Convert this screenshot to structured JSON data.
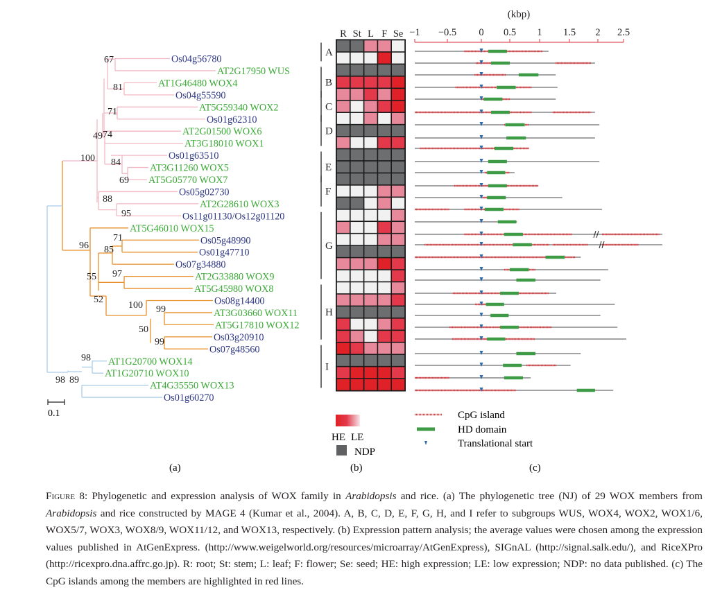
{
  "figure": {
    "panel_labels": [
      "(a)",
      "(b)",
      "(c)"
    ],
    "caption": {
      "label": "Figure 8:",
      "segments": [
        {
          "text": " Phylogenetic and expression analysis of WOX family in ",
          "italic": false
        },
        {
          "text": "Arabidopsis",
          "italic": true
        },
        {
          "text": " and rice. (a) The phylogenetic tree (NJ) of 29 WOX members from ",
          "italic": false
        },
        {
          "text": "Arabidopsis",
          "italic": true
        },
        {
          "text": " and rice constructed by MAGE 4 (Kumar et al., 2004). A, B, C, D, E, F, G, H, and I refer to subgroups WUS, WOX4, WOX2, WOX1/6, WOX5/7, WOX3, WOX8/9, WOX11/12, and WOX13, respectively. (b) Expression pattern analysis; the average values were chosen among the expression values published in AtGenExpress. (http://www.weigelworld.org/resources/microarray/AtGenExpress), SIGnAL (http://signal.salk.edu/), and RiceXPro (http://ricexpro.dna.affrc.go.jp). R: root; St: stem; L: leaf; F: flower; Se: seed; HE: high expression; LE: low expression; NDP: no data published. (c) The CpG islands among the members are highlighted in red lines.",
          "italic": false
        }
      ]
    }
  },
  "colors": {
    "arabidopsis_label": "#3aa935",
    "rice_label": "#2b3582",
    "clade_pink": "#f2b8c3",
    "clade_orange": "#e8902a",
    "clade_blue": "#a9cbe6",
    "ndp": "#6d6e70",
    "high": "#e02127",
    "mid": "#e3394a",
    "low_mid": "#e8899b",
    "low": "#f1f1f1",
    "cpg": "#e53a3f",
    "hd": "#3e9b45",
    "tss": "#2d6aa6",
    "axis": "#e05560",
    "gene_line": "#6d6e70"
  },
  "tree": {
    "scale_label": "0.1",
    "leaves": [
      {
        "name": "Os04g56780",
        "species": "rice"
      },
      {
        "name": "AT2G17950 WUS",
        "species": "arabidopsis"
      },
      {
        "name": "AT1G46480 WOX4",
        "species": "arabidopsis"
      },
      {
        "name": "Os04g55590",
        "species": "rice"
      },
      {
        "name": "AT5G59340 WOX2",
        "species": "arabidopsis"
      },
      {
        "name": "Os01g62310",
        "species": "rice"
      },
      {
        "name": "AT2G01500 WOX6",
        "species": "arabidopsis"
      },
      {
        "name": "AT3G18010 WOX1",
        "species": "arabidopsis"
      },
      {
        "name": "Os01g63510",
        "species": "rice"
      },
      {
        "name": "AT3G11260 WOX5",
        "species": "arabidopsis"
      },
      {
        "name": "AT5G05770 WOX7",
        "species": "arabidopsis"
      },
      {
        "name": "Os05g02730",
        "species": "rice"
      },
      {
        "name": "AT2G28610 WOX3",
        "species": "arabidopsis"
      },
      {
        "name": "Os11g01130/Os12g01120",
        "species": "rice"
      },
      {
        "name": "AT5G46010 WOX15",
        "species": "arabidopsis"
      },
      {
        "name": "Os05g48990",
        "species": "rice"
      },
      {
        "name": "Os01g47710",
        "species": "rice"
      },
      {
        "name": "Os07g34880",
        "species": "rice"
      },
      {
        "name": "AT2G33880 WOX9",
        "species": "arabidopsis"
      },
      {
        "name": "AT5G45980 WOX8",
        "species": "arabidopsis"
      },
      {
        "name": "Os08g14400",
        "species": "rice"
      },
      {
        "name": "AT3G03660 WOX11",
        "species": "arabidopsis"
      },
      {
        "name": "AT5G17810 WOX12",
        "species": "arabidopsis"
      },
      {
        "name": "Os03g20910",
        "species": "rice"
      },
      {
        "name": "Os07g48560",
        "species": "rice"
      },
      {
        "name": "AT1G20700 WOX14",
        "species": "arabidopsis"
      },
      {
        "name": "AT1G20710 WOX10",
        "species": "arabidopsis"
      },
      {
        "name": "AT4G35550 WOX13",
        "species": "arabidopsis"
      },
      {
        "name": "Os01g60270",
        "species": "rice"
      }
    ],
    "bootstrap_values": [
      "67",
      "81",
      "71",
      "49",
      "74",
      "84",
      "69",
      "100",
      "88",
      "95",
      "96",
      "71",
      "85",
      "55",
      "97",
      "52",
      "100",
      "99",
      "50",
      "99",
      "98",
      "98",
      "89"
    ]
  },
  "heatmap": {
    "columns": [
      "R",
      "St",
      "L",
      "F",
      "Se"
    ],
    "groups": [
      {
        "label": "A",
        "rows": [
          0,
          1
        ]
      },
      {
        "label": "B",
        "rows": [
          2,
          4
        ]
      },
      {
        "label": "C",
        "rows": [
          4,
          6
        ]
      },
      {
        "label": "D",
        "rows": [
          6,
          8
        ]
      },
      {
        "label": "E",
        "rows": [
          9,
          11
        ]
      },
      {
        "label": "F",
        "rows": [
          11,
          13
        ]
      },
      {
        "label": "G",
        "rows": [
          14,
          19
        ]
      },
      {
        "label": "H",
        "rows": [
          20,
          24
        ]
      },
      {
        "label": "I",
        "rows": [
          25,
          28
        ]
      }
    ],
    "legend": {
      "high_label": "HE",
      "low_label": "LE",
      "ndp_label": "NDP"
    },
    "levels_note": "NDP = no data; 4 = high, 3 = mid-high, 2 = mid-low, 1 = low",
    "cells": [
      [
        "NDP",
        "NDP",
        2,
        2,
        1
      ],
      [
        1,
        1,
        1,
        4,
        1
      ],
      [
        "NDP",
        "NDP",
        "NDP",
        "NDP",
        "NDP"
      ],
      [
        3,
        3,
        3,
        3,
        4
      ],
      [
        2,
        2,
        3,
        2,
        4
      ],
      [
        2,
        1,
        2,
        3,
        4
      ],
      [
        1,
        1,
        2,
        1,
        2
      ],
      [
        "NDP",
        "NDP",
        "NDP",
        "NDP",
        "NDP"
      ],
      [
        2,
        1,
        1,
        3,
        3
      ],
      [
        "NDP",
        "NDP",
        "NDP",
        "NDP",
        "NDP"
      ],
      [
        "NDP",
        "NDP",
        "NDP",
        "NDP",
        "NDP"
      ],
      [
        "NDP",
        "NDP",
        "NDP",
        "NDP",
        "NDP"
      ],
      [
        1,
        1,
        1,
        2,
        2
      ],
      [
        "NDP",
        "NDP",
        1,
        2,
        1
      ],
      [
        1,
        1,
        1,
        1,
        2
      ],
      [
        2,
        1,
        1,
        3,
        2
      ],
      [
        1,
        1,
        1,
        2,
        2
      ],
      [
        "NDP",
        "NDP",
        "NDP",
        "NDP",
        "NDP"
      ],
      [
        2,
        2,
        2,
        4,
        3
      ],
      [
        1,
        1,
        1,
        1,
        3
      ],
      [
        1,
        1,
        1,
        1,
        2
      ],
      [
        2,
        2,
        2,
        2,
        3
      ],
      [
        "NDP",
        "NDP",
        "NDP",
        "NDP",
        "NDP"
      ],
      [
        3,
        1,
        1,
        2,
        3
      ],
      [
        3,
        2,
        1,
        3,
        3
      ],
      [
        4,
        3,
        2,
        2,
        2
      ],
      [
        "NDP",
        "NDP",
        "NDP",
        "NDP",
        "NDP"
      ],
      [
        3,
        4,
        4,
        4,
        3
      ],
      [
        4,
        4,
        4,
        4,
        4
      ]
    ]
  },
  "chart_data": {
    "type": "gene-structure",
    "title": "",
    "xlabel": "(kbp)",
    "xlim": [
      -1,
      2.5
    ],
    "xticks": [
      "-1",
      "-0.5",
      "0",
      "0.5",
      "1",
      "1.5",
      "2",
      "2.5"
    ],
    "xtick_values": [
      -1,
      -0.5,
      0,
      0.5,
      1,
      1.5,
      2,
      2.5
    ],
    "legend": {
      "cpg_label": "CpG island",
      "hd_label": "HD domain",
      "tss_label": "Translational start",
      "placement": "bottom"
    },
    "genes": [
      {
        "start": -1,
        "end": 1.15,
        "hd": [
          0.12,
          0.45
        ],
        "cpg": [
          [
            -0.25,
            1.05
          ]
        ],
        "tss": 0
      },
      {
        "start": -1,
        "end": 1.95,
        "hd": [
          0.17,
          0.5
        ],
        "cpg": [
          [
            -0.08,
            0.5
          ],
          [
            1.27,
            1.88
          ]
        ],
        "tss": 0
      },
      {
        "start": -1,
        "end": 1.27,
        "hd": [
          0.65,
          0.98
        ],
        "cpg": [
          [
            -0.1,
            0.43
          ]
        ],
        "tss": 0
      },
      {
        "start": -1,
        "end": 1.3,
        "hd": [
          0.27,
          0.6
        ],
        "cpg": [
          [
            -0.38,
            0.87
          ]
        ],
        "tss": 0
      },
      {
        "start": -1,
        "end": 1.27,
        "hd": [
          0.04,
          0.37
        ],
        "cpg": [
          [
            0,
            0.5
          ]
        ],
        "tss": 0
      },
      {
        "start": -1,
        "end": 1.95,
        "hd": [
          0.17,
          0.5
        ],
        "cpg": [
          [
            -1,
            0.87
          ],
          [
            1.22,
            1.88
          ]
        ],
        "tss": 0
      },
      {
        "start": -1,
        "end": 2.03,
        "hd": [
          0.42,
          0.75
        ],
        "cpg": [
          [
            0.4,
            0.82
          ]
        ],
        "tss": 0
      },
      {
        "start": -1,
        "end": 1.95,
        "hd": [
          0.44,
          0.77
        ],
        "cpg": [],
        "tss": 0
      },
      {
        "start": -1,
        "end": 0.82,
        "hd": [
          0.23,
          0.56
        ],
        "cpg": [
          [
            -0.92,
            0.82
          ]
        ],
        "tss": 0
      },
      {
        "start": -1,
        "end": 2.03,
        "hd": [
          0.12,
          0.45
        ],
        "cpg": [],
        "tss": 0
      },
      {
        "start": -1,
        "end": 0.58,
        "hd": [
          0.1,
          0.42
        ],
        "cpg": [
          [
            0.06,
            0.5
          ]
        ],
        "tss": 0
      },
      {
        "start": -1,
        "end": 0.98,
        "hd": [
          0.12,
          0.45
        ],
        "cpg": [
          [
            -0.4,
            0.98
          ]
        ],
        "tss": 0
      },
      {
        "start": -1,
        "end": 1.38,
        "hd": [
          0.1,
          0.43
        ],
        "cpg": [
          [
            0.02,
            0.43
          ]
        ],
        "tss": 0
      },
      {
        "start": -1,
        "end": 2.08,
        "hd": [
          0.06,
          0.39
        ],
        "cpg": [
          [
            -1,
            -0.47
          ],
          [
            -0.25,
            0.66
          ]
        ],
        "tss": 0
      },
      {
        "start": -1,
        "end": 0.62,
        "hd": [
          0.29,
          0.61
        ],
        "cpg": [],
        "tss": 0
      },
      {
        "start": -1,
        "end": 2.6,
        "hd": [
          0.4,
          0.72
        ],
        "cpg": [
          [
            -0.25,
            1.55
          ],
          [
            2.05,
            2.6
          ]
        ],
        "tss": 0,
        "break": 1.95
      },
      {
        "start": -1,
        "end": 2.45,
        "hd": [
          0.55,
          0.87
        ],
        "cpg": [
          [
            -0.85,
            1.17
          ],
          [
            1.22,
            1.83
          ],
          [
            2.05,
            2.4
          ]
        ],
        "tss": 0,
        "break": 1.92
      },
      {
        "start": -1,
        "end": 1.7,
        "hd": [
          1.1,
          1.42
        ],
        "cpg": [
          [
            -1,
            1.6
          ]
        ],
        "tss": 0
      },
      {
        "start": -1,
        "end": 2.2,
        "hd": [
          0.5,
          0.82
        ],
        "cpg": [
          [
            0.4,
            0.93
          ]
        ],
        "tss": 0
      },
      {
        "start": -1,
        "end": 2.05,
        "hd": [
          0.61,
          0.93
        ],
        "cpg": [],
        "tss": 0
      },
      {
        "start": -1,
        "end": 1.28,
        "hd": [
          0.33,
          0.65
        ],
        "cpg": [
          [
            -0.42,
            1.15
          ]
        ],
        "tss": 0
      },
      {
        "start": -1,
        "end": 2.33,
        "hd": [
          0.08,
          0.4
        ],
        "cpg": [
          [
            -0.09,
            0.32
          ]
        ],
        "tss": 0
      },
      {
        "start": -1,
        "end": 2.05,
        "hd": [
          0.16,
          0.48
        ],
        "cpg": [],
        "tss": 0
      },
      {
        "start": -1,
        "end": 2.38,
        "hd": [
          0.33,
          0.65
        ],
        "cpg": [
          [
            -0.47,
            1.2
          ]
        ],
        "tss": 0
      },
      {
        "start": -1,
        "end": 2.55,
        "hd": [
          0.1,
          0.42
        ],
        "cpg": [
          [
            -0.43,
            0.92
          ]
        ],
        "tss": 0
      },
      {
        "start": -1,
        "end": 1.7,
        "hd": [
          0.61,
          0.93
        ],
        "cpg": [],
        "tss": 0
      },
      {
        "start": -1,
        "end": 1.52,
        "hd": [
          0.38,
          0.7
        ],
        "cpg": [
          [
            0.78,
            1.28
          ]
        ],
        "tss": 0
      },
      {
        "start": -1,
        "end": 0.85,
        "hd": [
          0.4,
          0.72
        ],
        "cpg": [
          [
            -1,
            -0.47
          ]
        ],
        "tss": 0
      },
      {
        "start": -1,
        "end": 2.3,
        "hd": [
          1.63,
          1.95
        ],
        "cpg": [
          [
            -1,
            0.6
          ]
        ],
        "tss": 0
      }
    ]
  }
}
